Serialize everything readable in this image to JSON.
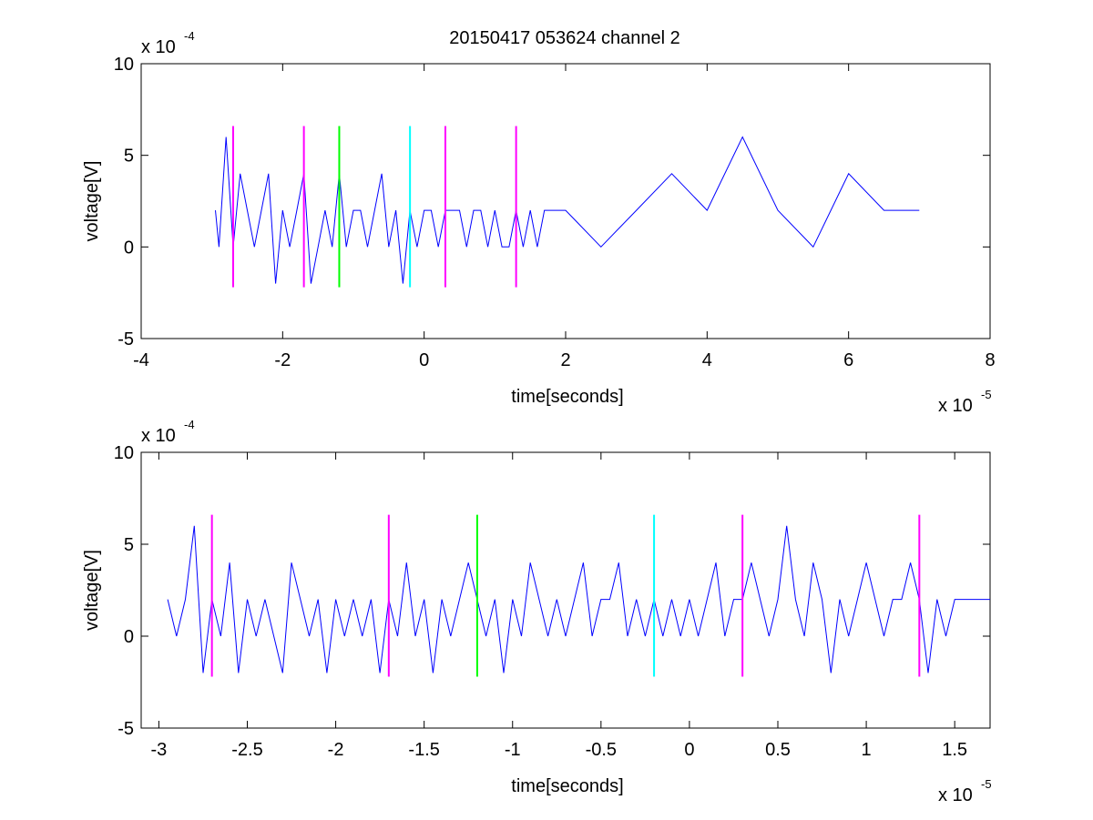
{
  "figure_title": "20150417 053624 channel 2",
  "chart_data": [
    {
      "type": "line",
      "xlabel": "time[seconds]",
      "ylabel": "voltage[V]",
      "xlim": [
        -4,
        8
      ],
      "ylim": [
        -5,
        10
      ],
      "xticks": [
        -4,
        -2,
        0,
        2,
        4,
        6,
        8
      ],
      "xtick_labels": [
        "-4",
        "-2",
        "0",
        "2",
        "4",
        "6",
        "8"
      ],
      "yticks": [
        -5,
        0,
        5,
        10
      ],
      "ytick_labels": [
        "-5",
        "0",
        "5",
        "10"
      ],
      "x_multiplier": "x 10",
      "x_multiplier_exp": "-5",
      "y_multiplier": "x 10",
      "y_multiplier_exp": "-4",
      "grid": false,
      "series": [
        {
          "color": "#0000ff",
          "x": [
            -2.95,
            -2.9,
            -2.8,
            -2.7,
            -2.6,
            -2.5,
            -2.4,
            -2.3,
            -2.2,
            -2.1,
            -2.0,
            -1.9,
            -1.8,
            -1.7,
            -1.6,
            -1.5,
            -1.4,
            -1.3,
            -1.2,
            -1.1,
            -1.0,
            -0.9,
            -0.8,
            -0.7,
            -0.6,
            -0.5,
            -0.4,
            -0.3,
            -0.2,
            -0.1,
            0.0,
            0.1,
            0.2,
            0.3,
            0.4,
            0.5,
            0.6,
            0.7,
            0.8,
            0.9,
            1.0,
            1.1,
            1.2,
            1.3,
            1.4,
            1.5,
            1.6,
            1.7,
            2.0,
            2.5,
            3.0,
            3.5,
            4.0,
            4.5,
            5.0,
            5.5,
            6.0,
            6.5,
            7.0
          ],
          "y": [
            2,
            0,
            6,
            0,
            4,
            2,
            0,
            2,
            4,
            -2,
            2,
            0,
            2,
            4,
            -2,
            0,
            2,
            0,
            4,
            0,
            2,
            2,
            0,
            2,
            4,
            0,
            2,
            -2,
            2,
            0,
            2,
            2,
            0,
            2,
            2,
            2,
            0,
            2,
            2,
            0,
            2,
            0,
            0,
            2,
            0,
            2,
            0,
            2,
            2,
            0,
            2,
            4,
            2,
            6,
            2,
            0,
            4,
            2,
            2
          ]
        }
      ],
      "markers": [
        {
          "x": -2.7,
          "color": "#ff00ff"
        },
        {
          "x": -1.7,
          "color": "#ff00ff"
        },
        {
          "x": -1.2,
          "color": "#00ff00"
        },
        {
          "x": -0.2,
          "color": "#00ffff"
        },
        {
          "x": 0.3,
          "color": "#ff00ff"
        },
        {
          "x": 1.3,
          "color": "#ff00ff"
        }
      ],
      "marker_range": [
        -2.2,
        6.6
      ]
    },
    {
      "type": "line",
      "xlabel": "time[seconds]",
      "ylabel": "voltage[V]",
      "xlim": [
        -3.1,
        1.7
      ],
      "ylim": [
        -5,
        10
      ],
      "xticks": [
        -3,
        -2.5,
        -2,
        -1.5,
        -1,
        -0.5,
        0,
        0.5,
        1,
        1.5
      ],
      "xtick_labels": [
        "-3",
        "-2.5",
        "-2",
        "-1.5",
        "-1",
        "-0.5",
        "0",
        "0.5",
        "1",
        "1.5"
      ],
      "yticks": [
        -5,
        0,
        5,
        10
      ],
      "ytick_labels": [
        "-5",
        "0",
        "5",
        "10"
      ],
      "x_multiplier": "x 10",
      "x_multiplier_exp": "-5",
      "y_multiplier": "x 10",
      "y_multiplier_exp": "-4",
      "grid": false,
      "series": [
        {
          "color": "#0000ff",
          "x": [
            -2.95,
            -2.9,
            -2.85,
            -2.8,
            -2.75,
            -2.7,
            -2.65,
            -2.6,
            -2.55,
            -2.5,
            -2.45,
            -2.4,
            -2.35,
            -2.3,
            -2.25,
            -2.2,
            -2.15,
            -2.1,
            -2.05,
            -2.0,
            -1.95,
            -1.9,
            -1.85,
            -1.8,
            -1.75,
            -1.7,
            -1.65,
            -1.6,
            -1.55,
            -1.5,
            -1.45,
            -1.4,
            -1.35,
            -1.3,
            -1.25,
            -1.2,
            -1.15,
            -1.1,
            -1.05,
            -1.0,
            -0.95,
            -0.9,
            -0.85,
            -0.8,
            -0.75,
            -0.7,
            -0.65,
            -0.6,
            -0.55,
            -0.5,
            -0.45,
            -0.4,
            -0.35,
            -0.3,
            -0.25,
            -0.2,
            -0.15,
            -0.1,
            -0.05,
            0.0,
            0.05,
            0.1,
            0.15,
            0.2,
            0.25,
            0.3,
            0.35,
            0.4,
            0.45,
            0.5,
            0.55,
            0.6,
            0.65,
            0.7,
            0.75,
            0.8,
            0.85,
            0.9,
            0.95,
            1.0,
            1.05,
            1.1,
            1.15,
            1.2,
            1.25,
            1.3,
            1.35,
            1.4,
            1.45,
            1.5,
            1.55,
            1.6,
            1.65,
            1.7
          ],
          "y": [
            2,
            0,
            2,
            6,
            -2,
            2,
            0,
            4,
            -2,
            2,
            0,
            2,
            0,
            -2,
            4,
            2,
            0,
            2,
            -2,
            2,
            0,
            2,
            0,
            2,
            -2,
            2,
            0,
            4,
            0,
            2,
            -2,
            2,
            0,
            2,
            4,
            2,
            0,
            2,
            -2,
            2,
            0,
            4,
            2,
            0,
            2,
            0,
            2,
            4,
            0,
            2,
            2,
            4,
            0,
            2,
            0,
            2,
            0,
            2,
            0,
            2,
            0,
            2,
            4,
            0,
            2,
            2,
            4,
            2,
            0,
            2,
            6,
            2,
            0,
            4,
            2,
            -2,
            2,
            0,
            2,
            4,
            2,
            0,
            2,
            2,
            4,
            2,
            -2,
            2,
            0,
            2,
            2,
            2,
            2,
            2
          ]
        }
      ],
      "markers": [
        {
          "x": -2.7,
          "color": "#ff00ff"
        },
        {
          "x": -1.7,
          "color": "#ff00ff"
        },
        {
          "x": -1.2,
          "color": "#00ff00"
        },
        {
          "x": -0.2,
          "color": "#00ffff"
        },
        {
          "x": 0.3,
          "color": "#ff00ff"
        },
        {
          "x": 1.3,
          "color": "#ff00ff"
        }
      ],
      "marker_range": [
        -2.2,
        6.6
      ]
    }
  ]
}
